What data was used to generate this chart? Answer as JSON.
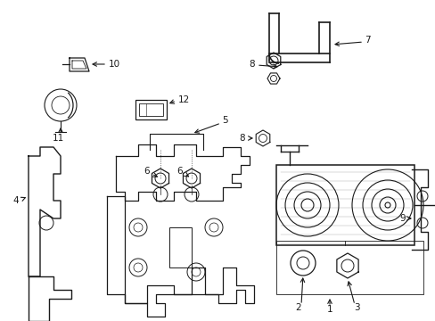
{
  "background_color": "#ffffff",
  "line_color": "#1a1a1a",
  "figsize": [
    4.89,
    3.6
  ],
  "dpi": 100,
  "parts": {
    "label_fontsize": 7.5,
    "arrow_lw": 0.7
  }
}
